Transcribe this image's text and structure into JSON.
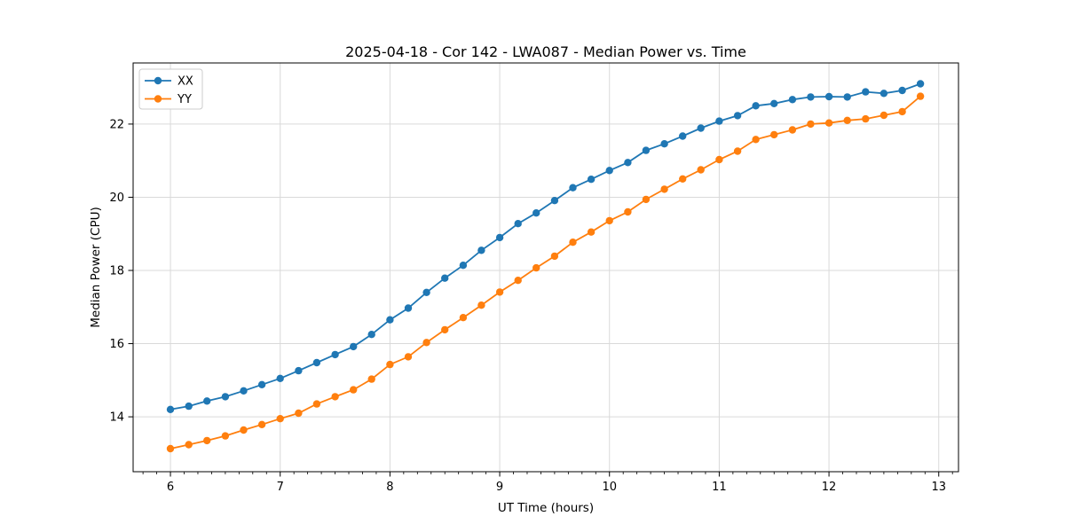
{
  "chart_data": {
    "type": "line",
    "title": "2025-04-18 - Cor 142 - LWA087 - Median Power vs. Time",
    "xlabel": "UT Time (hours)",
    "ylabel": "Median Power (CPU)",
    "xlim": [
      5.66,
      13.18
    ],
    "ylim": [
      12.5,
      23.67
    ],
    "xticks": [
      6,
      7,
      8,
      9,
      10,
      11,
      12,
      13
    ],
    "yticks": [
      14,
      16,
      18,
      20,
      22
    ],
    "x_minor_step": 0.125,
    "grid": true,
    "grid_color": "#d9d9d9",
    "spine_color": "#000000",
    "legend_position": "upper-left",
    "marker": "circle",
    "x": [
      6.0,
      6.167,
      6.333,
      6.5,
      6.667,
      6.833,
      7.0,
      7.167,
      7.333,
      7.5,
      7.667,
      7.833,
      8.0,
      8.167,
      8.333,
      8.5,
      8.667,
      8.833,
      9.0,
      9.167,
      9.333,
      9.5,
      9.667,
      9.833,
      10.0,
      10.167,
      10.333,
      10.5,
      10.667,
      10.833,
      11.0,
      11.167,
      11.333,
      11.5,
      11.667,
      11.833,
      12.0,
      12.167,
      12.333,
      12.5,
      12.667,
      12.833
    ],
    "series": [
      {
        "name": "XX",
        "color": "#1f77b4",
        "values": [
          14.2,
          14.29,
          14.43,
          14.55,
          14.71,
          14.88,
          15.05,
          15.26,
          15.48,
          15.7,
          15.92,
          16.25,
          16.65,
          16.97,
          17.4,
          17.79,
          18.14,
          18.55,
          18.9,
          19.28,
          19.57,
          19.91,
          20.26,
          20.49,
          20.73,
          20.95,
          21.28,
          21.46,
          21.67,
          21.89,
          22.08,
          22.23,
          22.5,
          22.56,
          22.67,
          22.74,
          22.75,
          22.74,
          22.88,
          22.84,
          22.92,
          23.1
        ]
      },
      {
        "name": "YY",
        "color": "#ff7f0e",
        "values": [
          13.13,
          13.24,
          13.35,
          13.48,
          13.64,
          13.79,
          13.95,
          14.1,
          14.35,
          14.55,
          14.74,
          15.03,
          15.43,
          15.64,
          16.03,
          16.38,
          16.71,
          17.05,
          17.41,
          17.73,
          18.07,
          18.39,
          18.77,
          19.05,
          19.36,
          19.6,
          19.94,
          20.22,
          20.5,
          20.75,
          21.03,
          21.26,
          21.58,
          21.71,
          21.84,
          22.0,
          22.03,
          22.1,
          22.14,
          22.24,
          22.34,
          22.76
        ]
      }
    ]
  }
}
